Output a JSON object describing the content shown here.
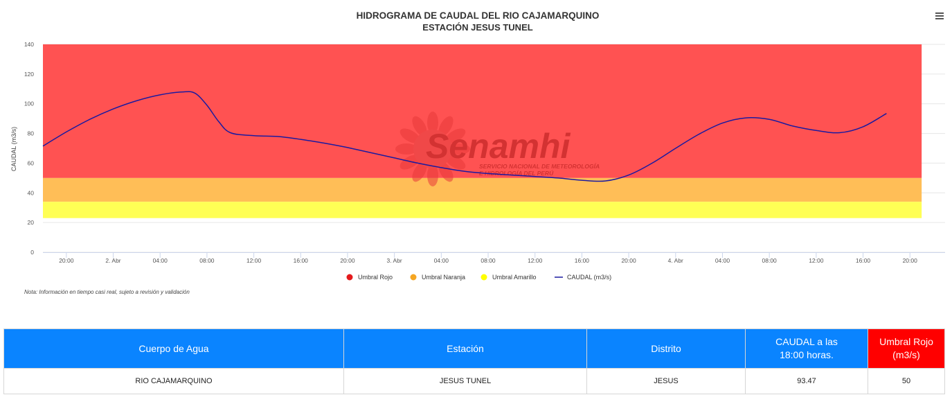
{
  "chart_data": {
    "type": "area",
    "title": "HIDROGRAMA DE CAUDAL DEL RIO CAJAMARQUINO",
    "subtitle": "ESTACIÓN JESUS TUNEL",
    "ylabel": "CAUDAL (m3/s)",
    "ylim": [
      0,
      140
    ],
    "yticks": [
      0,
      20,
      40,
      60,
      80,
      100,
      120,
      140
    ],
    "xlim": [
      "2025-04-01 18:00",
      "2025-04-04 23:00"
    ],
    "xticks": [
      {
        "t": "2025-04-01 20:00",
        "label": "20:00"
      },
      {
        "t": "2025-04-02 00:00",
        "label": "2. Abr"
      },
      {
        "t": "2025-04-02 04:00",
        "label": "04:00"
      },
      {
        "t": "2025-04-02 08:00",
        "label": "08:00"
      },
      {
        "t": "2025-04-02 12:00",
        "label": "12:00"
      },
      {
        "t": "2025-04-02 16:00",
        "label": "16:00"
      },
      {
        "t": "2025-04-02 20:00",
        "label": "20:00"
      },
      {
        "t": "2025-04-03 00:00",
        "label": "3. Abr"
      },
      {
        "t": "2025-04-03 04:00",
        "label": "04:00"
      },
      {
        "t": "2025-04-03 08:00",
        "label": "08:00"
      },
      {
        "t": "2025-04-03 12:00",
        "label": "12:00"
      },
      {
        "t": "2025-04-03 16:00",
        "label": "16:00"
      },
      {
        "t": "2025-04-03 20:00",
        "label": "20:00"
      },
      {
        "t": "2025-04-04 00:00",
        "label": "4. Abr"
      },
      {
        "t": "2025-04-04 04:00",
        "label": "04:00"
      },
      {
        "t": "2025-04-04 08:00",
        "label": "08:00"
      },
      {
        "t": "2025-04-04 12:00",
        "label": "12:00"
      },
      {
        "t": "2025-04-04 16:00",
        "label": "16:00"
      },
      {
        "t": "2025-04-04 20:00",
        "label": "20:00"
      }
    ],
    "bands": [
      {
        "name": "Umbral Rojo",
        "from": 50,
        "to": 140,
        "color": "#ff5252"
      },
      {
        "name": "Umbral Naranja",
        "from": 34,
        "to": 50,
        "color": "#ffbe57"
      },
      {
        "name": "Umbral Amarillo",
        "from": 23,
        "to": 34,
        "color": "#ffff55"
      }
    ],
    "bands_start": "2025-04-01 18:00",
    "bands_end": "2025-04-04 21:00",
    "series": [
      {
        "name": "CAUDAL (m3/s)",
        "color": "#1a1aa0",
        "x": [
          "2025-04-01 18:00",
          "2025-04-01 20:00",
          "2025-04-01 22:00",
          "2025-04-02 00:00",
          "2025-04-02 02:00",
          "2025-04-02 04:00",
          "2025-04-02 06:00",
          "2025-04-02 07:00",
          "2025-04-02 08:00",
          "2025-04-02 09:00",
          "2025-04-02 10:00",
          "2025-04-02 12:00",
          "2025-04-02 14:00",
          "2025-04-02 16:00",
          "2025-04-02 18:00",
          "2025-04-02 20:00",
          "2025-04-02 22:00",
          "2025-04-03 00:00",
          "2025-04-03 02:00",
          "2025-04-03 04:00",
          "2025-04-03 06:00",
          "2025-04-03 08:00",
          "2025-04-03 10:00",
          "2025-04-03 12:00",
          "2025-04-03 14:00",
          "2025-04-03 16:00",
          "2025-04-03 18:00",
          "2025-04-03 20:00",
          "2025-04-03 22:00",
          "2025-04-04 00:00",
          "2025-04-04 02:00",
          "2025-04-04 04:00",
          "2025-04-04 06:00",
          "2025-04-04 08:00",
          "2025-04-04 10:00",
          "2025-04-04 12:00",
          "2025-04-04 14:00",
          "2025-04-04 16:00",
          "2025-04-04 18:00"
        ],
        "values": [
          71.5,
          81,
          89.5,
          96.5,
          102,
          106,
          108,
          107,
          99,
          88,
          80.5,
          78.5,
          78,
          76,
          73.5,
          70.5,
          67,
          63.5,
          60,
          57,
          54.5,
          53,
          52,
          51,
          50,
          48.5,
          48,
          52,
          60,
          70,
          79.5,
          87,
          90.5,
          89.5,
          85,
          82,
          80.5,
          84.5,
          93.47
        ]
      }
    ],
    "legend": {
      "placement": "bottom-center",
      "items": [
        "Umbral Rojo",
        "Umbral Naranja",
        "Umbral Amarillo",
        "CAUDAL (m3/s)"
      ],
      "colors": [
        "#e41a1c",
        "#f5a623",
        "#ffff00",
        "#1a1aa0"
      ]
    },
    "grid": true
  },
  "watermark": {
    "name": "Senamhi",
    "line1": "SERVICIO NACIONAL DE METEOROLOGÍA",
    "line2": "E HIDROLOGÍA DEL PERÚ"
  },
  "menu_icon": "hamburger-menu-icon",
  "note": "Nota: Información en tiempo casi real, sujeto a revisión y validación",
  "table": {
    "headers": [
      "Cuerpo de Agua",
      "Estación",
      "Distrito",
      "CAUDAL a las 18:00 horas.",
      "Umbral Rojo (m3/s)"
    ],
    "row": [
      "RIO CAJAMARQUINO",
      "JESUS TUNEL",
      "JESUS",
      "93.47",
      "50"
    ],
    "header_color": "#0a84ff",
    "header_red_color": "#ff0000"
  }
}
